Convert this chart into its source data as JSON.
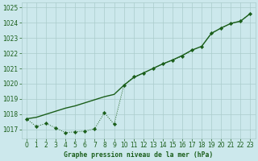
{
  "title": "Graphe pression niveau de la mer (hPa)",
  "bg_color": "#cce8ec",
  "grid_color": "#aacccc",
  "line_color": "#1a5e1a",
  "marker_color": "#1a5e1a",
  "x_ticks": [
    0,
    1,
    2,
    3,
    4,
    5,
    6,
    7,
    8,
    9,
    10,
    11,
    12,
    13,
    14,
    15,
    16,
    17,
    18,
    19,
    20,
    21,
    22,
    23
  ],
  "y_min": 1016.4,
  "y_max": 1025.3,
  "y_ticks": [
    1017,
    1018,
    1019,
    1020,
    1021,
    1022,
    1023,
    1024,
    1025
  ],
  "series1_x": [
    0,
    1,
    2,
    3,
    4,
    5,
    6,
    7,
    8,
    9,
    10,
    11,
    12,
    13,
    14,
    15,
    16,
    17,
    18,
    19,
    20,
    21,
    22,
    23
  ],
  "series1_y": [
    1017.7,
    1017.2,
    1017.4,
    1017.1,
    1016.8,
    1016.85,
    1016.9,
    1017.05,
    1018.1,
    1017.35,
    1019.9,
    1020.45,
    1020.7,
    1021.0,
    1021.3,
    1021.55,
    1021.8,
    1022.2,
    1022.45,
    1023.3,
    1023.65,
    1023.95,
    1024.1,
    1024.6
  ],
  "series2_x": [
    0,
    1,
    2,
    3,
    4,
    5,
    6,
    7,
    8,
    9,
    10,
    11,
    12,
    13,
    14,
    15,
    16,
    17,
    18,
    19,
    20,
    21,
    22,
    23
  ],
  "series2_y": [
    1017.7,
    1017.8,
    1018.0,
    1018.2,
    1018.4,
    1018.55,
    1018.75,
    1018.95,
    1019.15,
    1019.3,
    1019.9,
    1020.4,
    1020.7,
    1021.0,
    1021.3,
    1021.55,
    1021.85,
    1022.2,
    1022.45,
    1023.3,
    1023.65,
    1023.95,
    1024.1,
    1024.6
  ]
}
